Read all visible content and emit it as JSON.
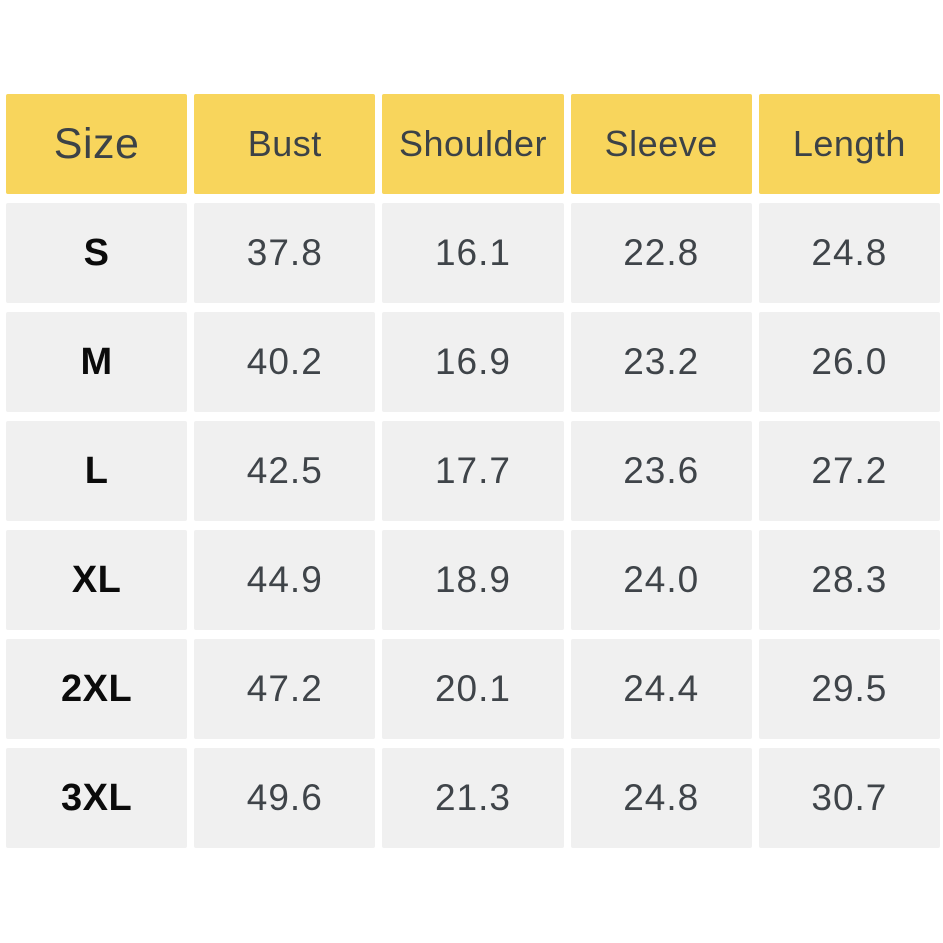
{
  "chart_data": {
    "type": "table",
    "title": "",
    "columns": [
      "Size",
      "Bust",
      "Shoulder",
      "Sleeve",
      "Length"
    ],
    "rows": [
      {
        "size": "S",
        "values": [
          "37.8",
          "16.1",
          "22.8",
          "24.8"
        ]
      },
      {
        "size": "M",
        "values": [
          "40.2",
          "16.9",
          "23.2",
          "26.0"
        ]
      },
      {
        "size": "L",
        "values": [
          "42.5",
          "17.7",
          "23.6",
          "27.2"
        ]
      },
      {
        "size": "XL",
        "values": [
          "44.9",
          "18.9",
          "24.0",
          "28.3"
        ]
      },
      {
        "size": "2XL",
        "values": [
          "47.2",
          "20.1",
          "24.4",
          "29.5"
        ]
      },
      {
        "size": "3XL",
        "values": [
          "49.6",
          "21.3",
          "24.8",
          "30.7"
        ]
      }
    ],
    "layout": {
      "header_position": "top",
      "grid": "off",
      "gutters": "white"
    },
    "colors": {
      "header_bg": "#F8D55C",
      "cell_bg": "#F0F0F0",
      "header_text": "#3C4247",
      "value_text": "#3F4449",
      "size_text": "#0B0B0B",
      "page_bg": "#FFFFFF"
    }
  }
}
